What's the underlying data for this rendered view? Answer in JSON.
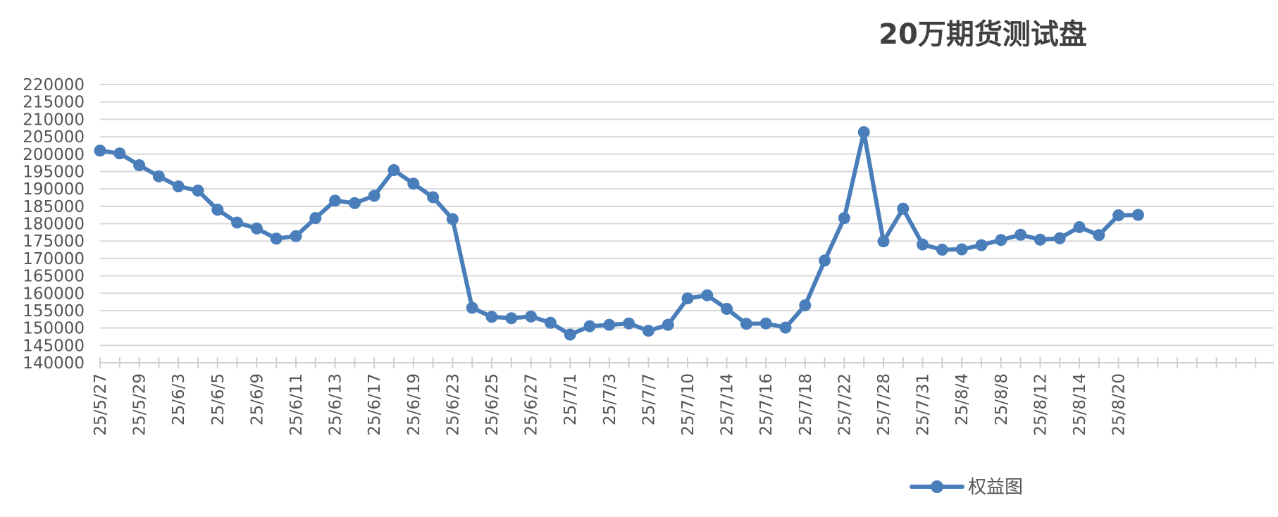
{
  "chart_data": {
    "type": "line",
    "title": "20万期货测试盘",
    "xlabel": "",
    "ylabel": "",
    "ylim": [
      140000,
      220000
    ],
    "y_ticks": [
      140000,
      145000,
      150000,
      155000,
      160000,
      165000,
      170000,
      175000,
      180000,
      185000,
      190000,
      195000,
      200000,
      205000,
      210000,
      215000,
      220000
    ],
    "x_tick_labels": [
      "25/5/27",
      "25/5/29",
      "25/6/3",
      "25/6/5",
      "25/6/9",
      "25/6/11",
      "25/6/13",
      "25/6/17",
      "25/6/19",
      "25/6/23",
      "25/6/25",
      "25/6/27",
      "25/7/1",
      "25/7/3",
      "25/7/7",
      "25/7/10",
      "25/7/14",
      "25/7/16",
      "25/7/18",
      "25/7/22",
      "25/7/28",
      "25/7/31",
      "25/8/4",
      "25/8/8",
      "25/8/12",
      "25/8/14",
      "25/8/20"
    ],
    "grid": true,
    "legend_position": "bottom",
    "series": [
      {
        "name": "权益图",
        "color": "#4a7ebb",
        "values": [
          201000,
          200200,
          196800,
          193600,
          190700,
          189500,
          184000,
          180300,
          178600,
          175700,
          176400,
          181600,
          186600,
          185900,
          188000,
          195400,
          191500,
          187600,
          181300,
          155800,
          153200,
          152800,
          153300,
          151500,
          148100,
          150500,
          150900,
          151300,
          149200,
          150900,
          158500,
          159400,
          155500,
          151200,
          151300,
          150100,
          156500,
          169400,
          181600,
          206300,
          174900,
          184300,
          174000,
          172500,
          172600,
          173800,
          175300,
          176800,
          175400,
          175800,
          179000,
          176700,
          182400,
          182500
        ]
      }
    ]
  }
}
